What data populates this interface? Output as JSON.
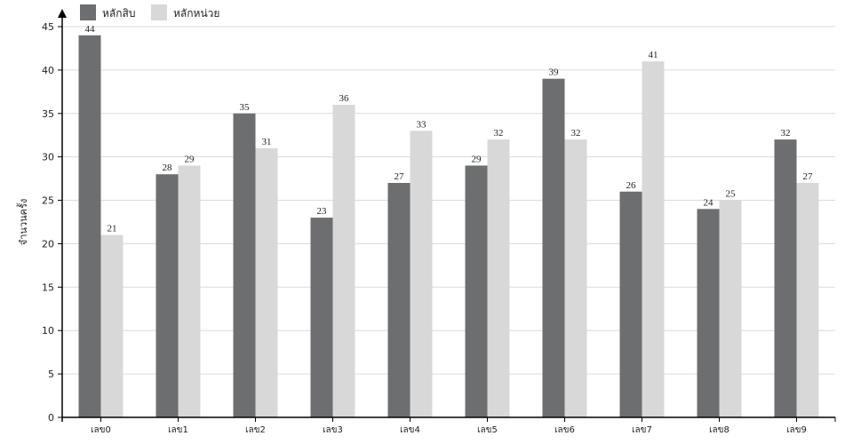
{
  "chart_data": {
    "type": "bar",
    "categories": [
      "เลข0",
      "เลข1",
      "เลข2",
      "เลข3",
      "เลข4",
      "เลข5",
      "เลข6",
      "เลข7",
      "เลข8",
      "เลข9"
    ],
    "series": [
      {
        "name": "หลักสิบ",
        "color": "#6d6e70",
        "values": [
          44,
          28,
          35,
          23,
          27,
          29,
          39,
          26,
          24,
          32
        ]
      },
      {
        "name": "หลักหน่วย",
        "color": "#d8d8d8",
        "values": [
          21,
          29,
          31,
          36,
          33,
          32,
          32,
          41,
          25,
          27
        ]
      }
    ],
    "title": "",
    "xlabel": "",
    "ylabel": "จำนวนครั้ง",
    "ylim": [
      0,
      45
    ],
    "yticks": [
      0,
      5,
      10,
      15,
      20,
      25,
      30,
      35,
      40,
      45
    ],
    "grid": true,
    "legend": "top-left",
    "data_labels": true
  }
}
